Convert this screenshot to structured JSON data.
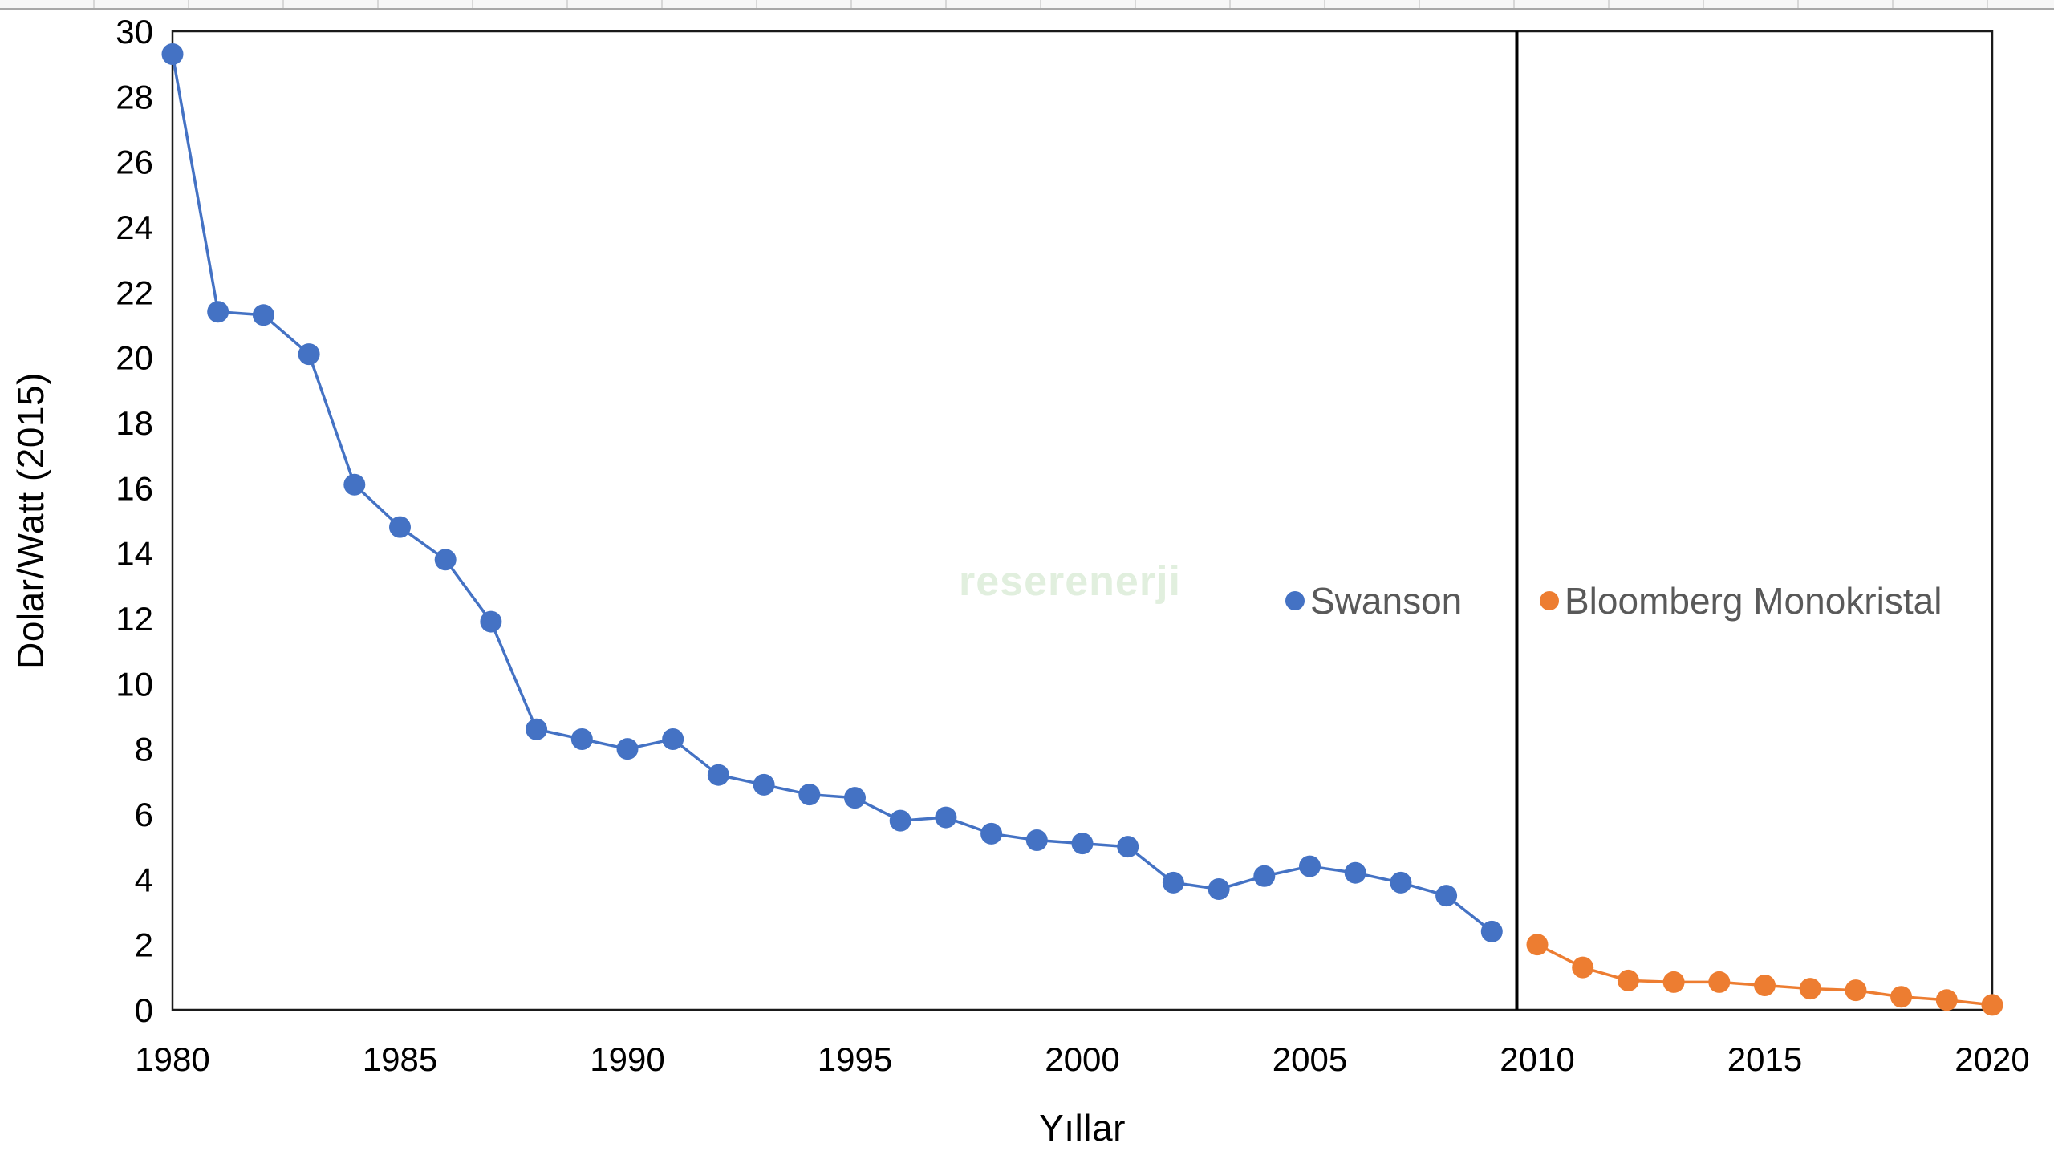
{
  "chart_data": {
    "type": "line",
    "title": "",
    "xlabel": "Yıllar",
    "ylabel": "Dolar/Watt (2015)",
    "xlim": [
      1980,
      2020
    ],
    "ylim": [
      0,
      30
    ],
    "x_ticks": [
      1980,
      1985,
      1990,
      1995,
      2000,
      2005,
      2010,
      2015,
      2020
    ],
    "y_ticks": [
      0,
      2,
      4,
      6,
      8,
      10,
      12,
      14,
      16,
      18,
      20,
      22,
      24,
      26,
      28,
      30
    ],
    "grid": false,
    "legend_position": "inside-right-middle",
    "divider_x": 2009.55,
    "series": [
      {
        "name": "Swanson",
        "color": "#4472C4",
        "x": [
          1980,
          1981,
          1982,
          1983,
          1984,
          1985,
          1986,
          1987,
          1988,
          1989,
          1990,
          1991,
          1992,
          1993,
          1994,
          1995,
          1996,
          1997,
          1998,
          1999,
          2000,
          2001,
          2002,
          2003,
          2004,
          2005,
          2006,
          2007,
          2008,
          2009
        ],
        "values": [
          29.3,
          21.4,
          21.3,
          20.1,
          16.1,
          14.8,
          13.8,
          11.9,
          8.6,
          8.3,
          8.0,
          8.3,
          7.2,
          6.9,
          6.6,
          6.5,
          5.8,
          5.9,
          5.4,
          5.2,
          5.1,
          5.0,
          3.9,
          3.7,
          4.1,
          4.4,
          4.2,
          3.9,
          3.5,
          2.4
        ]
      },
      {
        "name": "Bloomberg Monokristal",
        "color": "#ED7D31",
        "x": [
          2010,
          2011,
          2012,
          2013,
          2014,
          2015,
          2016,
          2017,
          2018,
          2019,
          2020
        ],
        "values": [
          2.0,
          1.3,
          0.9,
          0.85,
          0.85,
          0.75,
          0.65,
          0.6,
          0.4,
          0.3,
          0.15
        ]
      }
    ]
  },
  "legend": {
    "items": [
      {
        "label": "Swanson",
        "color": "#4472C4"
      },
      {
        "label": "Bloomberg Monokristal",
        "color": "#ED7D31"
      }
    ],
    "text_color": "#595959"
  },
  "watermark": {
    "text": "reserenerji"
  },
  "styles": {
    "axis_line_color": "#1a1a1a",
    "divider_color": "#000000",
    "tick_label_color": "#000000"
  }
}
